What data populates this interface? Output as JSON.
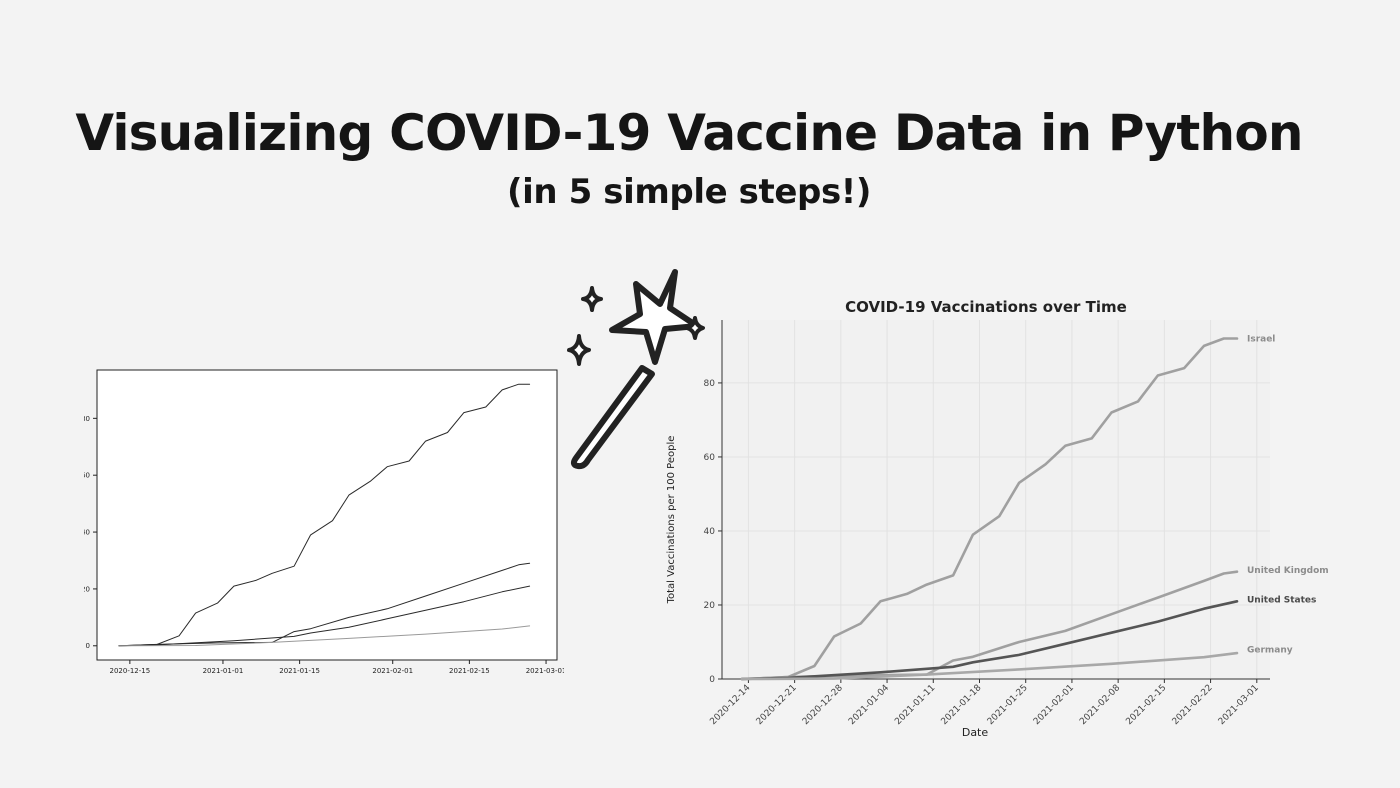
{
  "title": "Visualizing COVID-19 Vaccine Data in Python",
  "subtitle": "(in 5 simple steps!)",
  "chart_data": [
    {
      "type": "line",
      "title": "",
      "xlabel": "",
      "ylabel": "",
      "x_range": [
        "2020-12-09",
        "2021-03-03"
      ],
      "ylim": [
        -5,
        97
      ],
      "x_ticks": [
        "2020-12-15",
        "2021-01-01",
        "2021-01-15",
        "2021-02-01",
        "2021-02-15",
        "2021-03-01"
      ],
      "y_ticks": [
        0,
        20,
        40,
        60,
        80
      ],
      "grid": false,
      "legend": "none",
      "colors": [
        "#2a2a2a",
        "#2a2a2a",
        "#2a2a2a",
        "#9a9a9a"
      ],
      "series": [
        {
          "x": [
            "2020-12-13",
            "2020-12-20",
            "2020-12-24",
            "2020-12-27",
            "2020-12-31",
            "2021-01-03",
            "2021-01-07",
            "2021-01-10",
            "2021-01-14",
            "2021-01-17",
            "2021-01-21",
            "2021-01-24",
            "2021-01-28",
            "2021-01-31",
            "2021-02-04",
            "2021-02-07",
            "2021-02-11",
            "2021-02-14",
            "2021-02-18",
            "2021-02-21",
            "2021-02-24",
            "2021-02-26"
          ],
          "y": [
            0,
            0.5,
            3.5,
            11.5,
            15,
            21,
            23,
            25.5,
            28,
            39,
            44,
            53,
            58,
            63,
            65,
            72,
            75,
            82,
            84,
            90,
            92,
            92
          ]
        },
        {
          "x": [
            "2020-12-13",
            "2020-12-20",
            "2020-12-31",
            "2021-01-10",
            "2021-01-14",
            "2021-01-17",
            "2021-01-24",
            "2021-01-31",
            "2021-02-07",
            "2021-02-14",
            "2021-02-21",
            "2021-02-24",
            "2021-02-26"
          ],
          "y": [
            0,
            0.5,
            1,
            1.2,
            5,
            6,
            10,
            13,
            17.5,
            22,
            26.5,
            28.5,
            29
          ]
        },
        {
          "x": [
            "2020-12-13",
            "2020-12-20",
            "2021-01-03",
            "2021-01-14",
            "2021-01-17",
            "2021-01-24",
            "2021-01-31",
            "2021-02-07",
            "2021-02-14",
            "2021-02-21",
            "2021-02-26"
          ],
          "y": [
            0,
            0.3,
            1.8,
            3.3,
            4.5,
            6.5,
            9.5,
            12.5,
            15.5,
            19,
            21
          ]
        },
        {
          "x": [
            "2020-12-13",
            "2020-12-27",
            "2021-01-10",
            "2021-01-24",
            "2021-02-07",
            "2021-02-21",
            "2021-02-26"
          ],
          "y": [
            0,
            0.1,
            1.2,
            2.6,
            4.1,
            5.9,
            7
          ]
        }
      ]
    },
    {
      "type": "line",
      "title": "COVID-19 Vaccinations over Time",
      "xlabel": "Date",
      "ylabel": "Total Vaccinations per 100 People",
      "x_range": [
        "2020-12-10",
        "2021-03-03"
      ],
      "ylim": [
        0,
        97
      ],
      "x_ticks": [
        "2020-12-14",
        "2020-12-21",
        "2020-12-28",
        "2021-01-04",
        "2021-01-11",
        "2021-01-18",
        "2021-01-25",
        "2021-02-01",
        "2021-02-08",
        "2021-02-15",
        "2021-02-22",
        "2021-03-01"
      ],
      "y_ticks": [
        0,
        20,
        40,
        60,
        80
      ],
      "grid": true,
      "legend": "end-of-line labels",
      "series": [
        {
          "name": "Israel",
          "color": "#a0a0a0",
          "label_color": "#8c8c8c",
          "label_y": 92,
          "x": [
            "2020-12-13",
            "2020-12-20",
            "2020-12-24",
            "2020-12-27",
            "2020-12-31",
            "2021-01-03",
            "2021-01-07",
            "2021-01-10",
            "2021-01-14",
            "2021-01-17",
            "2021-01-21",
            "2021-01-24",
            "2021-01-28",
            "2021-01-31",
            "2021-02-04",
            "2021-02-07",
            "2021-02-11",
            "2021-02-14",
            "2021-02-18",
            "2021-02-21",
            "2021-02-24",
            "2021-02-26"
          ],
          "y": [
            0,
            0.5,
            3.5,
            11.5,
            15,
            21,
            23,
            25.5,
            28,
            39,
            44,
            53,
            58,
            63,
            65,
            72,
            75,
            82,
            84,
            90,
            92,
            92
          ]
        },
        {
          "name": "United Kingdom",
          "color": "#a0a0a0",
          "label_color": "#8c8c8c",
          "label_y": 29.5,
          "x": [
            "2020-12-13",
            "2020-12-20",
            "2020-12-31",
            "2021-01-10",
            "2021-01-14",
            "2021-01-17",
            "2021-01-24",
            "2021-01-31",
            "2021-02-07",
            "2021-02-14",
            "2021-02-21",
            "2021-02-24",
            "2021-02-26"
          ],
          "y": [
            0,
            0.5,
            1,
            1.2,
            5,
            6,
            10,
            13,
            17.5,
            22,
            26.5,
            28.5,
            29
          ]
        },
        {
          "name": "United States",
          "color": "#555555",
          "label_color": "#4a4a4a",
          "label_y": 21.5,
          "x": [
            "2020-12-13",
            "2020-12-20",
            "2021-01-03",
            "2021-01-14",
            "2021-01-17",
            "2021-01-24",
            "2021-01-31",
            "2021-02-07",
            "2021-02-14",
            "2021-02-21",
            "2021-02-26"
          ],
          "y": [
            0,
            0.3,
            1.8,
            3.3,
            4.5,
            6.5,
            9.5,
            12.5,
            15.5,
            19,
            21
          ]
        },
        {
          "name": "Germany",
          "color": "#a8a8a8",
          "label_color": "#8c8c8c",
          "label_y": 8,
          "x": [
            "2020-12-13",
            "2020-12-27",
            "2021-01-10",
            "2021-01-24",
            "2021-02-07",
            "2021-02-21",
            "2021-02-26"
          ],
          "y": [
            0,
            0.1,
            1.2,
            2.6,
            4.1,
            5.9,
            7
          ]
        }
      ]
    }
  ]
}
